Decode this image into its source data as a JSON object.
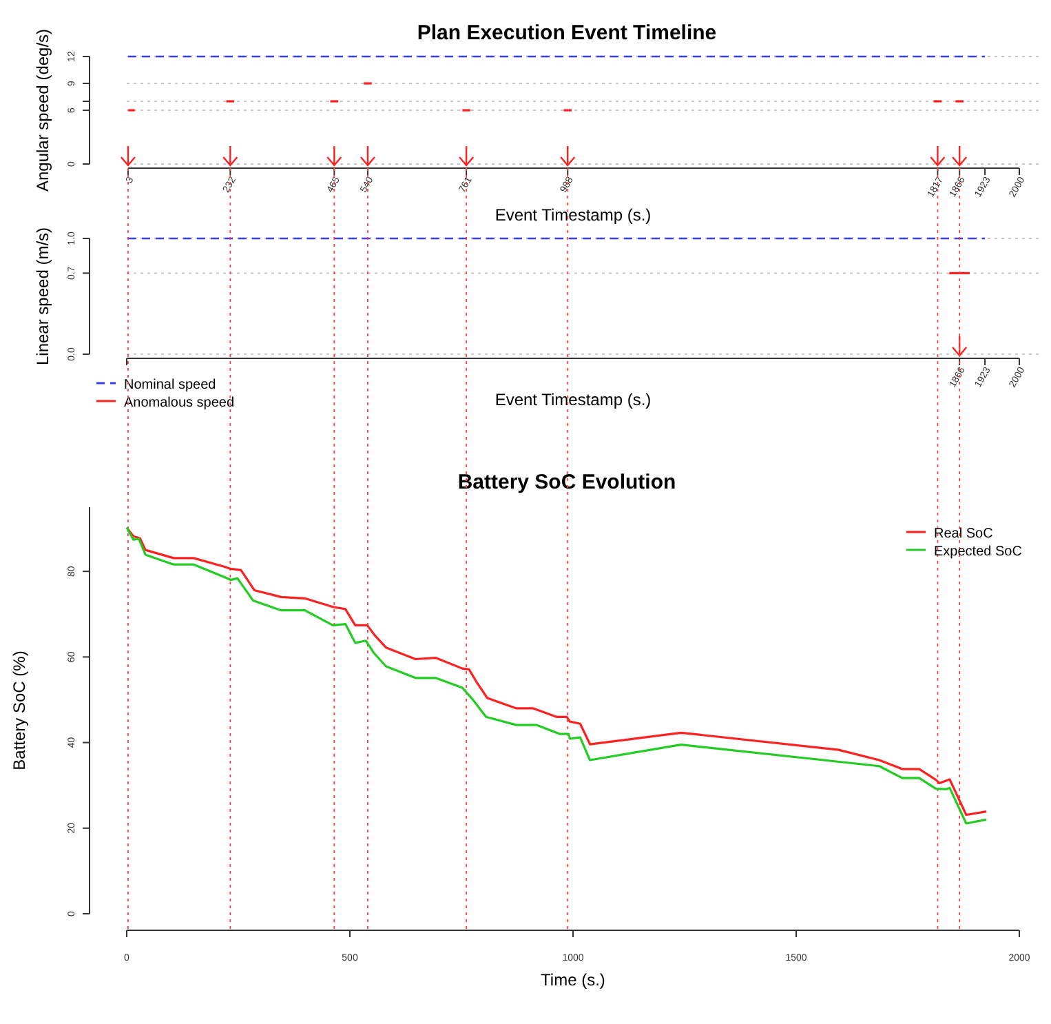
{
  "chart_data": [
    {
      "type": "line",
      "title": "Plan Execution Event Timeline",
      "xlabel": "Event Timestamp (s.)",
      "ylabel": "Angular speed (deg/s)",
      "xlim": [
        0,
        2000
      ],
      "ylim": [
        0,
        12
      ],
      "xticks": [
        3,
        232,
        465,
        540,
        761,
        988,
        1817,
        1866,
        1923,
        2000
      ],
      "yticks": [
        0,
        6,
        {
          "value": 7,
          "label": null
        },
        9,
        12
      ],
      "grid": "y",
      "legend": false,
      "series": [
        {
          "color": "#3c3cff",
          "line_style": "dashed",
          "x": [
            3,
            1923
          ],
          "values": [
            12,
            12
          ]
        },
        {
          "color": "#ff2020",
          "line_style": "solid",
          "x": [
            3,
            18
          ],
          "values": [
            6,
            6
          ]
        },
        {
          "color": "#ff2020",
          "line_style": "solid",
          "x": [
            223,
            241
          ],
          "values": [
            7,
            7
          ]
        },
        {
          "color": "#ff2020",
          "line_style": "solid",
          "x": [
            456,
            474
          ],
          "values": [
            7,
            7
          ]
        },
        {
          "color": "#ff2020",
          "line_style": "solid",
          "x": [
            531,
            549
          ],
          "values": [
            9,
            9
          ]
        },
        {
          "color": "#ff2020",
          "line_style": "solid",
          "x": [
            752,
            770
          ],
          "values": [
            6,
            6
          ]
        },
        {
          "color": "#ff2020",
          "line_style": "solid",
          "x": [
            979,
            997
          ],
          "values": [
            6,
            6
          ]
        },
        {
          "color": "#ff2020",
          "line_style": "solid",
          "x": [
            1808,
            1826
          ],
          "values": [
            7,
            7
          ]
        },
        {
          "color": "#ff2020",
          "line_style": "solid",
          "x": [
            1857,
            1875
          ],
          "values": [
            7,
            7
          ]
        }
      ]
    },
    {
      "type": "line",
      "xlabel": "Event Timestamp (s.)",
      "ylabel": "Linear speed (m/s)",
      "xlim": [
        0,
        2000
      ],
      "ylim": [
        0,
        1
      ],
      "xticks": [
        {
          "value": 0,
          "label": null
        },
        1866,
        1923,
        2000
      ],
      "yticks": [
        {
          "value": 0,
          "label": "0.0"
        },
        0.7,
        {
          "value": 1,
          "label": "1.0"
        }
      ],
      "grid": "y",
      "legend": "bottom left",
      "series": [
        {
          "name": "Nominal speed",
          "color": "#3c3cff",
          "line_style": "dashed",
          "x": [
            3,
            1923
          ],
          "values": [
            1,
            1
          ]
        },
        {
          "name": "Anomalous speed",
          "color": "#ff2020",
          "line_style": "solid",
          "x": [
            1843,
            1889
          ],
          "values": [
            0.7,
            0.7
          ]
        }
      ]
    },
    {
      "type": "line",
      "title": "Battery SoC Evolution",
      "xlabel": "Time (s.)",
      "ylabel": "Battery SoC (%)",
      "xlim": [
        0,
        2000
      ],
      "ylim": [
        0,
        95
      ],
      "xticks": [
        0,
        500,
        1000,
        1500,
        2000
      ],
      "yticks": [
        0,
        20,
        40,
        60,
        80
      ],
      "grid": false,
      "legend": "top right",
      "ref_lines": [
        {
          "axis": "x",
          "value": 3,
          "color": "#ff4040",
          "line_style": "dotted"
        },
        {
          "axis": "x",
          "value": 232,
          "color": "#ff4040",
          "line_style": "dotted"
        },
        {
          "axis": "x",
          "value": 465,
          "color": "#ff4040",
          "line_style": "dotted"
        },
        {
          "axis": "x",
          "value": 540,
          "color": "#ff4040",
          "line_style": "dotted"
        },
        {
          "axis": "x",
          "value": 761,
          "color": "#ff4040",
          "line_style": "dotted"
        },
        {
          "axis": "x",
          "value": 988,
          "color": "#ff4040",
          "line_style": "dotted"
        },
        {
          "axis": "x",
          "value": 1817,
          "color": "#ff4040",
          "line_style": "dotted"
        },
        {
          "axis": "x",
          "value": 1866,
          "color": "#ff4040",
          "line_style": "dotted"
        }
      ],
      "series": [
        {
          "name": "Real SoC",
          "color": "#ff2020",
          "line_style": "solid",
          "x": [
            0,
            15,
            30,
            42,
            105,
            150,
            218,
            233,
            256,
            286,
            346,
            399,
            462,
            490,
            512,
            539,
            557,
            581,
            647,
            692,
            752,
            767,
            783,
            808,
            873,
            911,
            963,
            986,
            993,
            1016,
            1038,
            1242,
            1595,
            1686,
            1738,
            1776,
            1813,
            1821,
            1844,
            1881,
            1926
          ],
          "values": [
            90.2,
            88.2,
            87.7,
            85,
            83.1,
            83.1,
            81.1,
            80.6,
            80.3,
            75.6,
            74,
            73.7,
            71.7,
            71.2,
            67.4,
            67.4,
            64.9,
            62.2,
            59.5,
            59.8,
            57.3,
            57.1,
            54.3,
            50.4,
            48,
            48,
            46,
            46,
            44.9,
            44.4,
            39.6,
            42.3,
            38.3,
            35.9,
            33.8,
            33.8,
            31.3,
            30.5,
            31.4,
            23.1,
            23.9
          ]
        },
        {
          "name": "Expected SoC",
          "color": "#22cc22",
          "line_style": "solid",
          "x": [
            0,
            15,
            27,
            42,
            105,
            150,
            218,
            233,
            248,
            283,
            346,
            399,
            462,
            490,
            512,
            536,
            554,
            581,
            647,
            692,
            752,
            775,
            805,
            873,
            918,
            971,
            990,
            993,
            1016,
            1038,
            1242,
            1686,
            1738,
            1776,
            1813,
            1836,
            1844,
            1881,
            1926
          ],
          "values": [
            90.2,
            87.4,
            87.6,
            83.9,
            81.6,
            81.6,
            78.7,
            78,
            78.4,
            73.2,
            70.9,
            70.9,
            67.4,
            67.7,
            63.3,
            63.8,
            60.9,
            57.8,
            55.1,
            55.1,
            52.8,
            50.1,
            46,
            44.1,
            44.1,
            42,
            42,
            40.9,
            41.2,
            35.9,
            39.5,
            34.5,
            31.7,
            31.7,
            29.2,
            29.1,
            29.4,
            21.1,
            22
          ]
        }
      ]
    }
  ]
}
